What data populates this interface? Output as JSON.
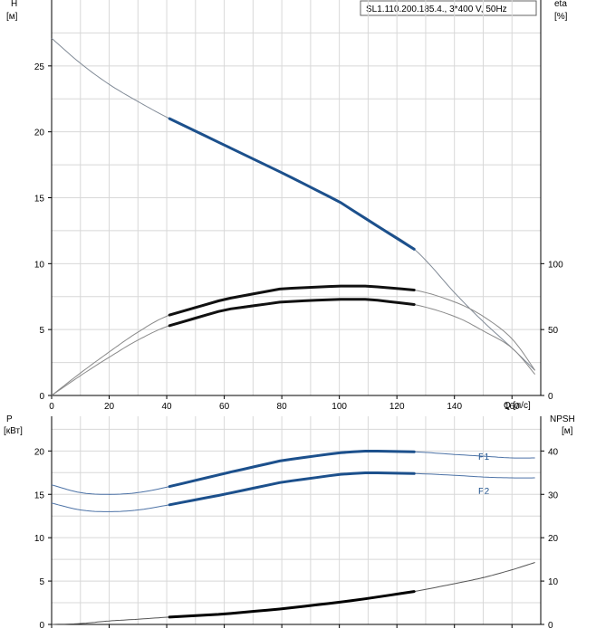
{
  "chart_data": [
    {
      "type": "line",
      "legend_box": "SL1.110.200.185.4., 3*400 V, 50Hz",
      "x_tick_labels": [
        "0",
        "20",
        "40",
        "60",
        "80",
        "100",
        "120",
        "140",
        "160"
      ],
      "x_unit_label": "Q [л/с]",
      "xlim": [
        0,
        170
      ],
      "y_left": {
        "label": "H",
        "unit": "[м]",
        "range": [
          0,
          30
        ],
        "ticks": [
          "0",
          "5",
          "10",
          "15",
          "20",
          "25"
        ]
      },
      "y_right": {
        "label": "eta",
        "unit": "[%]",
        "range": [
          0,
          300
        ],
        "ticks": [
          "0",
          "50",
          "100"
        ]
      },
      "grid": true,
      "series": [
        {
          "id": "H",
          "axis": "left",
          "color": "#808a96",
          "x": [
            0,
            10,
            20,
            30,
            41,
            60,
            80,
            100,
            110,
            126,
            140,
            150,
            160,
            168
          ],
          "y": [
            27.1,
            25.2,
            23.6,
            22.3,
            21.0,
            19.0,
            16.9,
            14.7,
            13.3,
            11.1,
            7.8,
            5.6,
            3.6,
            1.9
          ],
          "operating_range": [
            41,
            126
          ],
          "op_color": "#1c508c"
        },
        {
          "id": "eta_high",
          "axis": "right",
          "color": "#8a8a8a",
          "x": [
            0,
            10,
            20,
            30,
            41,
            60,
            80,
            100,
            110,
            126,
            140,
            150,
            160,
            168
          ],
          "y": [
            0,
            17,
            33,
            48,
            61,
            73,
            81,
            83,
            83,
            80,
            71,
            60,
            43,
            19
          ],
          "operating_range": [
            41,
            126
          ],
          "op_color": "#111111"
        },
        {
          "id": "eta_low",
          "axis": "right",
          "color": "#8a8a8a",
          "x": [
            0,
            10,
            20,
            30,
            41,
            60,
            80,
            100,
            110,
            126,
            140,
            150,
            160,
            168
          ],
          "y": [
            0,
            15,
            29,
            42,
            53,
            65,
            71,
            73,
            73,
            69,
            60,
            49,
            36,
            16
          ],
          "operating_range": [
            41,
            126
          ],
          "op_color": "#111111"
        }
      ]
    },
    {
      "type": "line",
      "x_tick_labels": [
        "0",
        "20",
        "40",
        "60",
        "80",
        "100",
        "120",
        "140",
        "160"
      ],
      "xlim": [
        0,
        170
      ],
      "y_left": {
        "label": "P",
        "unit": "[кВт]",
        "range": [
          0,
          24
        ],
        "ticks": [
          "0",
          "5",
          "10",
          "15",
          "20"
        ]
      },
      "y_right": {
        "label": "NPSH",
        "unit": "[м]",
        "range": [
          0,
          48
        ],
        "ticks": [
          "0",
          "10",
          "20",
          "30",
          "40"
        ]
      },
      "grid": true,
      "series": [
        {
          "id": "P1",
          "name": "P1",
          "axis": "left",
          "color": "#4c72a6",
          "x": [
            0,
            10,
            20,
            30,
            41,
            60,
            80,
            100,
            110,
            126,
            140,
            150,
            160,
            168
          ],
          "y": [
            16.1,
            15.2,
            15.0,
            15.2,
            15.9,
            17.4,
            18.9,
            19.8,
            20.0,
            19.9,
            19.6,
            19.4,
            19.2,
            19.2
          ],
          "operating_range": [
            41,
            126
          ],
          "op_color": "#1c508c"
        },
        {
          "id": "P2",
          "name": "P2",
          "axis": "left",
          "color": "#4c72a6",
          "x": [
            0,
            10,
            20,
            30,
            41,
            60,
            80,
            100,
            110,
            126,
            140,
            150,
            160,
            168
          ],
          "y": [
            14.0,
            13.2,
            13.0,
            13.2,
            13.8,
            15.0,
            16.4,
            17.3,
            17.5,
            17.4,
            17.2,
            17.0,
            16.9,
            16.9
          ],
          "operating_range": [
            41,
            126
          ],
          "op_color": "#1c508c"
        },
        {
          "id": "NPSH",
          "axis": "right",
          "color": "#555555",
          "x": [
            0,
            10,
            20,
            30,
            41,
            60,
            80,
            100,
            110,
            126,
            140,
            150,
            160,
            168
          ],
          "y": [
            0,
            0.2,
            0.8,
            1.2,
            1.7,
            2.4,
            3.6,
            5.1,
            6.0,
            7.6,
            9.4,
            10.8,
            12.6,
            14.3
          ],
          "operating_range": [
            41,
            126
          ],
          "op_color": "#000000"
        }
      ]
    }
  ]
}
